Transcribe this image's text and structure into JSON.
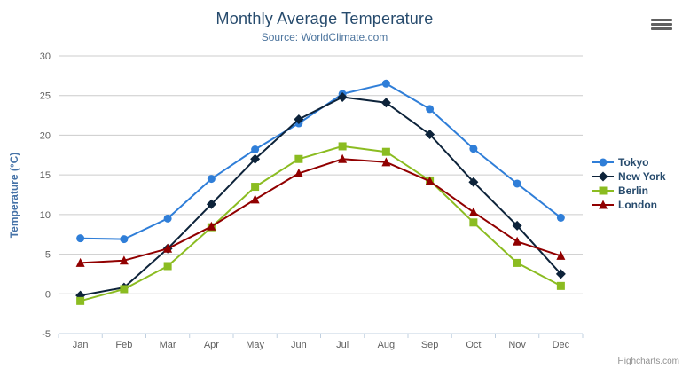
{
  "chart": {
    "title": "Monthly Average Temperature",
    "subtitle": "Source: WorldClimate.com",
    "credits": "Highcharts.com",
    "export_button_icon": "hamburger-icon"
  },
  "chart_data": {
    "type": "line",
    "title": "Monthly Average Temperature",
    "subtitle": "Source: WorldClimate.com",
    "categories": [
      "Jan",
      "Feb",
      "Mar",
      "Apr",
      "May",
      "Jun",
      "Jul",
      "Aug",
      "Sep",
      "Oct",
      "Nov",
      "Dec"
    ],
    "series": [
      {
        "name": "Tokyo",
        "color": "#2f7ed8",
        "marker": "circle",
        "values": [
          7.0,
          6.9,
          9.5,
          14.5,
          18.2,
          21.5,
          25.2,
          26.5,
          23.3,
          18.3,
          13.9,
          9.6
        ]
      },
      {
        "name": "New York",
        "color": "#0d233a",
        "marker": "diamond",
        "values": [
          -0.2,
          0.8,
          5.7,
          11.3,
          17.0,
          22.0,
          24.8,
          24.1,
          20.1,
          14.1,
          8.6,
          2.5
        ]
      },
      {
        "name": "Berlin",
        "color": "#8bbc21",
        "marker": "square",
        "values": [
          -0.9,
          0.6,
          3.5,
          8.4,
          13.5,
          17.0,
          18.6,
          17.9,
          14.3,
          9.0,
          3.9,
          1.0
        ]
      },
      {
        "name": "London",
        "color": "#910000",
        "marker": "triangle",
        "values": [
          3.9,
          4.2,
          5.7,
          8.5,
          11.9,
          15.2,
          17.0,
          16.6,
          14.2,
          10.3,
          6.6,
          4.8
        ]
      }
    ],
    "xlabel": "",
    "ylabel": "Temperature (°C)",
    "ylim": [
      -5,
      30
    ],
    "yticks": [
      -5,
      0,
      5,
      10,
      15,
      20,
      25,
      30
    ],
    "grid": true,
    "legend_position": "right"
  },
  "colors": {
    "title": "#274b6d",
    "subtitle": "#4d759e",
    "axis_label": "#606060",
    "axis_title": "#4572a7",
    "gridline": "#cccccc",
    "axis_line": "#c0d0e0",
    "legend_text": "#274b6d",
    "credits": "#909090"
  }
}
